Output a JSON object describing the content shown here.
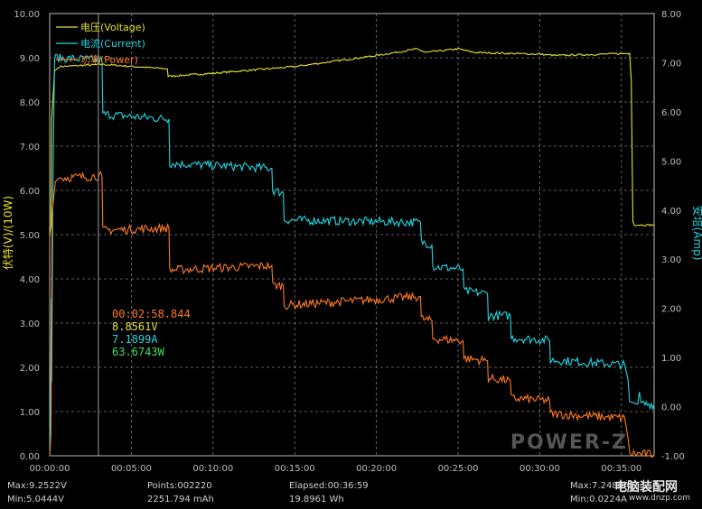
{
  "colors": {
    "voltage": "#e8e22a",
    "current": "#20d6e0",
    "power": "#ff7a1f",
    "power_readout": "#40e060",
    "grid": "#7a7a7a",
    "axis": "#bdbdbd",
    "background": "#000000"
  },
  "watermark": {
    "logo_text": "POWER-Z",
    "site_name": "电脑装配网",
    "site_url": "www.dnzp.com"
  },
  "readout": {
    "time": "00:02:58.844",
    "voltage": "8.8561V",
    "current": "7.1899A",
    "power": "63.6743W"
  },
  "status": {
    "max_v": "Max:9.2522V",
    "min_v": "Min:5.0444V",
    "points": "Points:002220",
    "capacity": "2251.794 mAh",
    "elapsed": "Elapsed:00:36:59",
    "energy": "19.8961 Wh",
    "max_a": "Max:7.2480A",
    "min_a": "Min:0.0224A"
  },
  "chart_data": {
    "type": "line",
    "title": "",
    "xlabel": "",
    "ylabel_left": "伏特(V)/(10W)",
    "ylabel_right": "安培(Amp)",
    "x_unit": "minutes",
    "xlim": [
      0,
      37
    ],
    "ylim_left": [
      0,
      10
    ],
    "ylim_right": [
      -1,
      8
    ],
    "x_ticks": [
      "00:00:00",
      "00:05:00",
      "00:10:00",
      "00:15:00",
      "00:20:00",
      "00:25:00",
      "00:30:00",
      "00:35:00"
    ],
    "y_ticks_left": [
      "0.00",
      "1.00",
      "2.00",
      "3.00",
      "4.00",
      "5.00",
      "6.00",
      "7.00",
      "8.00",
      "9.00",
      "10.00"
    ],
    "y_ticks_right": [
      "-1.00",
      "0.00",
      "1.00",
      "2.00",
      "3.00",
      "4.00",
      "5.00",
      "6.00",
      "7.00",
      "8.00"
    ],
    "grid": true,
    "legend_position": "top-left",
    "cursor_x": 2.98,
    "series": [
      {
        "name": "电压(Voltage)",
        "axis": "left",
        "color": "#e8e22a",
        "points": [
          [
            0,
            5.0
          ],
          [
            0.08,
            5.2
          ],
          [
            0.12,
            7.6
          ],
          [
            0.3,
            8.7
          ],
          [
            0.6,
            8.8
          ],
          [
            3.2,
            8.85
          ],
          [
            7.2,
            8.75
          ],
          [
            7.25,
            8.58
          ],
          [
            10,
            8.65
          ],
          [
            15,
            8.8
          ],
          [
            20,
            9.05
          ],
          [
            22.5,
            9.2
          ],
          [
            23,
            9.12
          ],
          [
            25,
            9.2
          ],
          [
            26,
            9.12
          ],
          [
            30,
            9.08
          ],
          [
            31,
            9.05
          ],
          [
            35.5,
            9.1
          ],
          [
            35.6,
            8.5
          ],
          [
            35.7,
            5.3
          ],
          [
            35.8,
            5.22
          ],
          [
            37,
            5.22
          ]
        ]
      },
      {
        "name": "电流(Current)",
        "axis": "right",
        "color": "#20d6e0",
        "points": [
          [
            0,
            -1
          ],
          [
            0.05,
            0.2
          ],
          [
            0.1,
            2.2
          ],
          [
            0.12,
            0.5
          ],
          [
            0.2,
            4.5
          ],
          [
            0.3,
            7.1
          ],
          [
            3.2,
            7.05
          ],
          [
            3.25,
            5.95
          ],
          [
            7.3,
            5.85
          ],
          [
            7.35,
            4.95
          ],
          [
            13.6,
            4.85
          ],
          [
            13.65,
            4.4
          ],
          [
            14.3,
            4.35
          ],
          [
            14.35,
            3.8
          ],
          [
            22.7,
            3.75
          ],
          [
            22.75,
            3.35
          ],
          [
            23.4,
            3.3
          ],
          [
            23.45,
            2.85
          ],
          [
            25.3,
            2.8
          ],
          [
            25.35,
            2.35
          ],
          [
            26.8,
            2.3
          ],
          [
            26.85,
            1.85
          ],
          [
            28.2,
            1.85
          ],
          [
            28.25,
            1.4
          ],
          [
            30.6,
            1.35
          ],
          [
            30.65,
            0.95
          ],
          [
            35.2,
            0.85
          ],
          [
            35.4,
            0.55
          ],
          [
            35.5,
            0.1
          ],
          [
            35.8,
            0.07
          ],
          [
            36,
            0.05
          ],
          [
            36.1,
            0.3
          ],
          [
            36.2,
            0.05
          ],
          [
            37,
            0.05
          ]
        ]
      },
      {
        "name": "功率(Power)",
        "axis": "left",
        "color": "#ff7a1f",
        "points": [
          [
            0,
            0
          ],
          [
            0.08,
            0.5
          ],
          [
            0.15,
            5.5
          ],
          [
            0.35,
            6.2
          ],
          [
            0.6,
            6.28
          ],
          [
            3.2,
            6.33
          ],
          [
            3.25,
            5.1
          ],
          [
            7.3,
            5.15
          ],
          [
            7.35,
            4.2
          ],
          [
            13.6,
            4.3
          ],
          [
            13.65,
            3.85
          ],
          [
            14.3,
            3.85
          ],
          [
            14.35,
            3.4
          ],
          [
            22.7,
            3.6
          ],
          [
            22.75,
            3.1
          ],
          [
            23.4,
            3.05
          ],
          [
            23.45,
            2.65
          ],
          [
            25.3,
            2.6
          ],
          [
            25.35,
            2.2
          ],
          [
            26.8,
            2.15
          ],
          [
            26.85,
            1.75
          ],
          [
            28.2,
            1.7
          ],
          [
            28.25,
            1.3
          ],
          [
            30.6,
            1.25
          ],
          [
            30.65,
            0.95
          ],
          [
            35.2,
            0.85
          ],
          [
            35.4,
            0.4
          ],
          [
            35.5,
            0.05
          ],
          [
            37,
            0.03
          ]
        ]
      }
    ]
  }
}
